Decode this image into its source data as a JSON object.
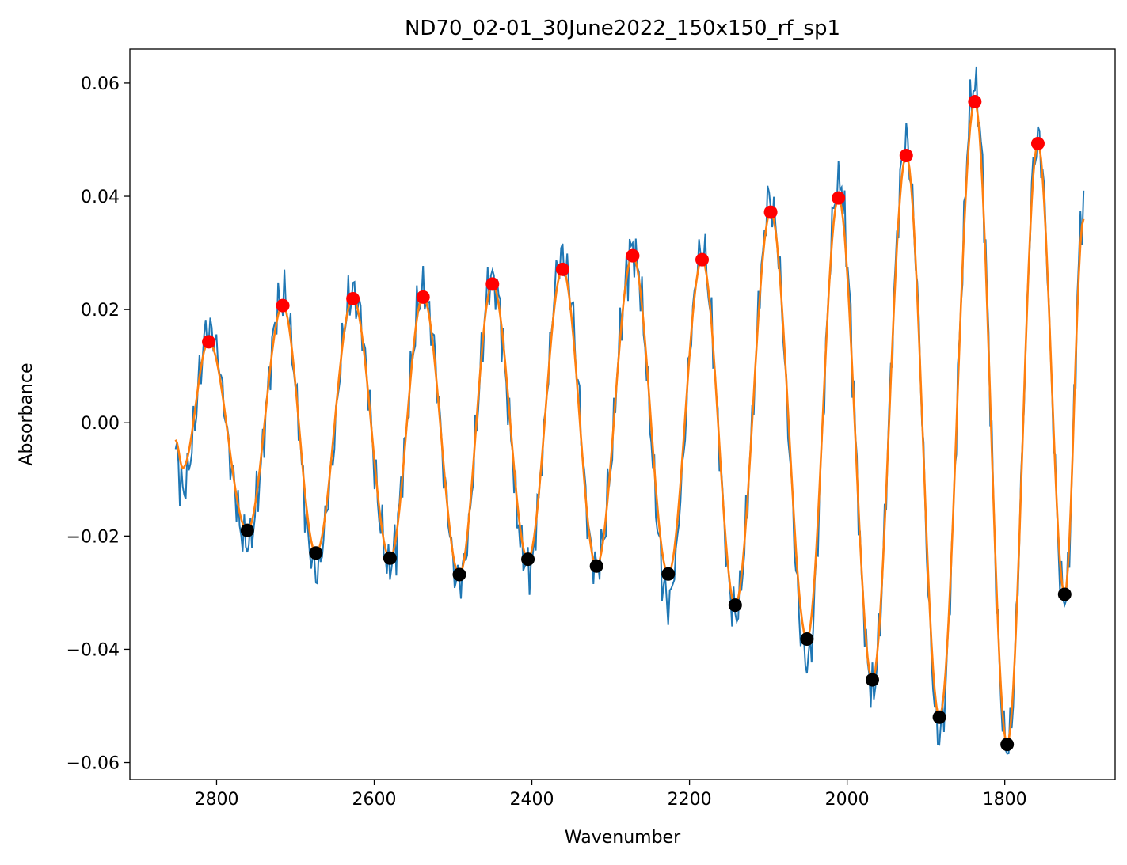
{
  "chart_data": {
    "type": "line",
    "title": "ND70_02-01_30June2022_150x150_rf_sp1",
    "xlabel": "Wavenumber",
    "ylabel": "Absorbance",
    "xlim": [
      2910,
      1660
    ],
    "ylim": [
      -0.063,
      0.066
    ],
    "x_inverted": true,
    "grid": false,
    "legend": "none",
    "xticks": [
      2800,
      2600,
      2400,
      2200,
      2000,
      1800
    ],
    "xtick_labels": [
      "2800",
      "2600",
      "2400",
      "2200",
      "2000",
      "1800"
    ],
    "yticks": [
      0.06,
      0.04,
      0.02,
      0.0,
      -0.02,
      -0.04,
      -0.06
    ],
    "ytick_labels": [
      "0.06",
      "0.04",
      "0.02",
      "0.00",
      "−0.02",
      "−0.04",
      "−0.06"
    ],
    "x_range": [
      2852,
      1700
    ],
    "colors": {
      "raw": "#1f77b4",
      "smooth": "#ff7f0e",
      "maxima": "#ff0000",
      "minima": "#000000"
    },
    "series": [
      {
        "key": "raw",
        "style": "line",
        "anchors_x": [
          2852,
          2843,
          2810,
          2761,
          2716,
          2674,
          2627,
          2580,
          2538,
          2492,
          2450,
          2405,
          2361,
          2318,
          2272,
          2227,
          2184,
          2142,
          2097,
          2051,
          2011,
          1968,
          1925,
          1883,
          1838,
          1797,
          1758,
          1724,
          1700
        ],
        "anchors_y": [
          -0.005,
          -0.012,
          0.016,
          -0.021,
          0.022,
          -0.026,
          0.023,
          -0.025,
          0.023,
          -0.028,
          0.025,
          -0.026,
          0.03,
          -0.026,
          0.03,
          -0.031,
          0.03,
          -0.034,
          0.039,
          -0.043,
          0.043,
          -0.047,
          0.049,
          -0.055,
          0.06,
          -0.058,
          0.05,
          -0.032,
          0.038
        ]
      },
      {
        "key": "smooth",
        "style": "line",
        "anchors_x": [
          2852,
          2843,
          2810,
          2761,
          2716,
          2674,
          2627,
          2580,
          2538,
          2492,
          2450,
          2405,
          2361,
          2318,
          2272,
          2227,
          2184,
          2142,
          2097,
          2051,
          2011,
          1968,
          1925,
          1883,
          1838,
          1797,
          1758,
          1724,
          1700
        ],
        "anchors_y": [
          -0.003,
          -0.008,
          0.0143,
          -0.019,
          0.0207,
          -0.023,
          0.0219,
          -0.0239,
          0.0222,
          -0.0268,
          0.0245,
          -0.0241,
          0.0271,
          -0.0253,
          0.0295,
          -0.0267,
          0.0288,
          -0.0322,
          0.0372,
          -0.0382,
          0.0397,
          -0.0454,
          0.0472,
          -0.052,
          0.0567,
          -0.0568,
          0.0493,
          -0.0303,
          0.036
        ]
      },
      {
        "key": "maxima",
        "style": "markers",
        "x": [
          2810,
          2716,
          2627,
          2538,
          2450,
          2361,
          2272,
          2184,
          2097,
          2011,
          1925,
          1838,
          1758
        ],
        "y": [
          0.0143,
          0.0207,
          0.0219,
          0.0222,
          0.0245,
          0.0271,
          0.0295,
          0.0288,
          0.0372,
          0.0397,
          0.0472,
          0.0567,
          0.0493
        ]
      },
      {
        "key": "minima",
        "style": "markers",
        "x": [
          2761,
          2674,
          2580,
          2492,
          2405,
          2318,
          2227,
          2142,
          2051,
          1968,
          1883,
          1797,
          1724
        ],
        "y": [
          -0.019,
          -0.023,
          -0.0239,
          -0.0268,
          -0.0241,
          -0.0253,
          -0.0267,
          -0.0322,
          -0.0382,
          -0.0454,
          -0.052,
          -0.0568,
          -0.0303
        ]
      }
    ]
  }
}
